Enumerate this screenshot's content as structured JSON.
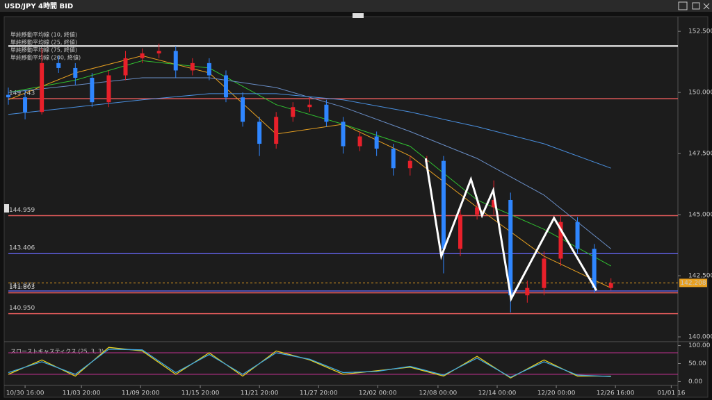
{
  "chart_data": {
    "type": "candlestick",
    "title": "USD/JPY 4時間 BID",
    "x": [
      0,
      3,
      6,
      9,
      12,
      15,
      18,
      21,
      24,
      27,
      30,
      33,
      36,
      39,
      42,
      45,
      48,
      51,
      54,
      57,
      60,
      63,
      66,
      69,
      72,
      75,
      78,
      81,
      84,
      87,
      90,
      93,
      96,
      99,
      102,
      105,
      108
    ],
    "open": [
      149.9,
      149.8,
      149.2,
      151.2,
      151.0,
      150.6,
      149.6,
      150.7,
      151.4,
      151.6,
      151.7,
      150.9,
      151.2,
      150.7,
      149.8,
      148.8,
      147.9,
      149.0,
      149.4,
      149.5,
      148.8,
      147.8,
      148.2,
      147.7,
      146.9,
      147.2,
      147.2,
      143.6,
      145.0,
      145.3,
      145.6,
      141.7,
      142.0,
      143.2,
      144.7,
      143.6,
      142.0
    ],
    "high": [
      150.2,
      150.1,
      151.8,
      151.5,
      151.2,
      150.8,
      150.9,
      151.7,
      151.8,
      152.0,
      151.9,
      151.4,
      151.4,
      150.9,
      150.0,
      149.0,
      149.2,
      149.6,
      149.8,
      149.7,
      149.0,
      148.4,
      148.4,
      147.9,
      147.4,
      147.4,
      147.4,
      145.2,
      145.6,
      146.4,
      145.9,
      142.3,
      143.5,
      145.0,
      144.9,
      143.8,
      142.4
    ],
    "low": [
      149.5,
      148.9,
      149.1,
      150.8,
      150.3,
      149.4,
      149.4,
      150.5,
      151.2,
      151.4,
      150.6,
      150.7,
      150.5,
      149.6,
      148.6,
      147.4,
      147.7,
      148.8,
      149.2,
      148.6,
      147.5,
      147.6,
      147.4,
      146.6,
      146.6,
      146.9,
      142.6,
      143.3,
      144.8,
      145.0,
      141.0,
      141.4,
      141.7,
      142.9,
      143.4,
      141.8,
      141.9
    ],
    "close": [
      149.8,
      149.2,
      151.2,
      151.0,
      150.6,
      149.6,
      150.7,
      151.4,
      151.6,
      151.7,
      150.9,
      151.2,
      150.7,
      149.8,
      148.8,
      147.9,
      149.0,
      149.4,
      149.5,
      148.8,
      147.8,
      148.2,
      147.7,
      146.9,
      147.2,
      147.2,
      143.6,
      145.0,
      145.3,
      145.6,
      141.7,
      142.0,
      143.2,
      144.7,
      143.6,
      142.0,
      142.2
    ],
    "up_color": "#e8202a",
    "down_color": "#2f86ff",
    "series": [
      {
        "name": "単純移動平均線 (10, 終値)",
        "color": "#e8a020",
        "x": [
          0,
          12,
          24,
          36,
          48,
          60,
          72,
          84,
          96,
          108
        ],
        "values": [
          149.7,
          150.8,
          151.5,
          150.8,
          148.3,
          148.7,
          147.4,
          145.3,
          143.3,
          142.0
        ]
      },
      {
        "name": "単純移動平均線 (25, 終値)",
        "color": "#30c030",
        "x": [
          0,
          12,
          24,
          36,
          48,
          60,
          72,
          84,
          96,
          108
        ],
        "values": [
          150.0,
          150.5,
          151.3,
          151.0,
          149.5,
          148.7,
          147.8,
          145.6,
          144.4,
          142.9
        ]
      },
      {
        "name": "単純移動平均線 (75, 終値)",
        "color": "#6a8fc8",
        "x": [
          0,
          12,
          24,
          36,
          48,
          60,
          72,
          84,
          96,
          108
        ],
        "values": [
          150.0,
          150.3,
          150.6,
          150.6,
          150.2,
          149.4,
          148.4,
          147.3,
          145.8,
          143.6
        ]
      },
      {
        "name": "単純移動平均線 (200, 終値)",
        "color": "#4a90e0",
        "x": [
          0,
          12,
          24,
          36,
          48,
          60,
          72,
          84,
          96,
          108
        ],
        "values": [
          149.1,
          149.4,
          149.7,
          149.95,
          149.95,
          149.7,
          149.2,
          148.6,
          147.9,
          146.9
        ]
      }
    ],
    "levels": [
      {
        "value": 149.743,
        "color": "#e05a5a"
      },
      {
        "value": 144.959,
        "color": "#e05a5a"
      },
      {
        "value": 143.406,
        "color": "#6060e0"
      },
      {
        "value": 141.877,
        "color": "#6060e0"
      },
      {
        "value": 141.803,
        "color": "#e05a5a"
      },
      {
        "value": 140.95,
        "label": "140.950",
        "color": "#e05a5a"
      }
    ],
    "reference_line": {
      "value": 151.9,
      "color": "#ffffff"
    },
    "current_price": 142.208,
    "zigzag": {
      "color": "#ffffff",
      "x": [
        74.8,
        77.6,
        82.9,
        84.9,
        86.9,
        90.1,
        97.8,
        105.4
      ],
      "values": [
        147.3,
        143.3,
        146.45,
        144.97,
        146.0,
        141.56,
        144.86,
        141.9
      ]
    },
    "xlim": [
      0,
      120
    ],
    "ylim": [
      139.86,
      152.93
    ],
    "yticks": [
      {
        "value": 140,
        "label": "140.000"
      },
      {
        "value": 142.5,
        "label": "142.500"
      },
      {
        "value": 145,
        "label": "145.000"
      },
      {
        "value": 147.5,
        "label": "147.500"
      },
      {
        "value": 150,
        "label": "150.000"
      },
      {
        "value": 152.5,
        "label": "152.500"
      }
    ],
    "xticks": [
      {
        "value": 3,
        "label": "10/30 16:00"
      },
      {
        "value": 13.1,
        "label": "11/03 20:00"
      },
      {
        "value": 23.7,
        "label": "11/09 20:00"
      },
      {
        "value": 34.4,
        "label": "11/15 20:00"
      },
      {
        "value": 45,
        "label": "11/21 20:00"
      },
      {
        "value": 55.6,
        "label": "11/27 20:00"
      },
      {
        "value": 66.2,
        "label": "12/02 00:00"
      },
      {
        "value": 77,
        "label": "12/08 00:00"
      },
      {
        "value": 87.6,
        "label": "12/14 00:00"
      },
      {
        "value": 98.2,
        "label": "12/20 00:00"
      },
      {
        "value": 108.8,
        "label": "12/26 16:00"
      },
      {
        "value": 118.8,
        "label": "01/01 16"
      }
    ],
    "indicator": {
      "title": "スローストキャスティクス (25, 3, 3)",
      "ylim": [
        -5,
        105
      ],
      "yticks": [
        {
          "value": 0,
          "label": "0.00"
        },
        {
          "value": 50,
          "label": "50.00"
        },
        {
          "value": 100,
          "label": "100.00"
        }
      ],
      "bands": [
        80,
        20
      ],
      "band_color": "#c03090",
      "series": [
        {
          "color": "#e8d020",
          "x": [
            0,
            6,
            12,
            18,
            24,
            30,
            36,
            42,
            48,
            54,
            60,
            66,
            72,
            78,
            84,
            90,
            96,
            102,
            108
          ],
          "values": [
            20,
            60,
            15,
            95,
            85,
            20,
            80,
            15,
            85,
            60,
            20,
            30,
            40,
            15,
            70,
            10,
            60,
            15,
            15
          ]
        },
        {
          "color": "#40a8e0",
          "x": [
            0,
            6,
            12,
            18,
            24,
            30,
            36,
            42,
            48,
            54,
            60,
            66,
            72,
            78,
            84,
            90,
            96,
            102,
            108
          ],
          "values": [
            25,
            55,
            20,
            90,
            88,
            25,
            75,
            20,
            80,
            62,
            25,
            28,
            42,
            18,
            65,
            12,
            55,
            18,
            14
          ]
        }
      ]
    }
  }
}
